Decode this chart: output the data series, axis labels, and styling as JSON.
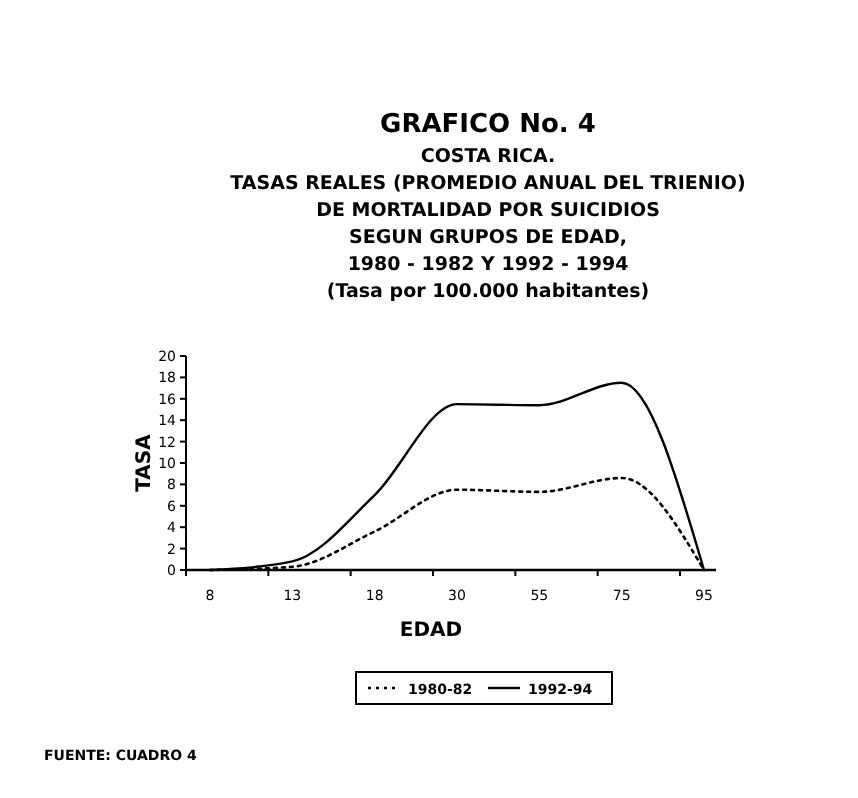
{
  "chart_data": {
    "type": "line",
    "title": "GRAFICO No. 4",
    "subtitle": "COSTA RICA.\nTASAS REALES (PROMEDIO ANUAL DEL  TRIENIO)\nDE MORTALIDAD POR SUICIDIOS\nSEGUN GRUPOS DE EDAD,\n1980 - 1982 Y 1992 - 1994\n(Tasa por 100.000 habitantes)",
    "xlabel": "EDAD",
    "ylabel": "TASA",
    "categories": [
      "8",
      "13",
      "18",
      "30",
      "55",
      "75",
      "95"
    ],
    "series": [
      {
        "name": "1980-82",
        "color": "#000000",
        "line_style": "dotted",
        "values": [
          0,
          0.3,
          3.6,
          7.5,
          7.3,
          8.6,
          0
        ]
      },
      {
        "name": "1992-94",
        "color": "#000000",
        "line_style": "solid",
        "values": [
          0,
          0.8,
          7,
          15.5,
          15.4,
          17.5,
          0
        ]
      }
    ],
    "ylim": [
      0,
      20
    ],
    "yticks": [
      0,
      2,
      4,
      6,
      8,
      10,
      12,
      14,
      16,
      18,
      20
    ],
    "grid": false,
    "legend": "bottom",
    "marker": "none",
    "annotations": [
      "FUENTE:  CUADRO 4"
    ]
  }
}
